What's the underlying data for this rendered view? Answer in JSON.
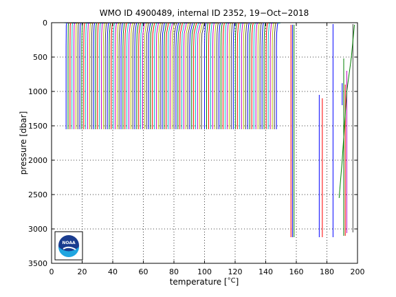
{
  "chart_data": {
    "type": "line",
    "title": "WMO ID 4900489, internal ID 2352, 19−Oct−2018",
    "xlabel": "temperature [",
    "xlabel_unit": "°C",
    "xlabel_suffix": "]",
    "ylabel": "pressure [dbar]",
    "xlim": [
      0,
      200
    ],
    "ylim": [
      0,
      3500
    ],
    "y_reversed": true,
    "grid": true,
    "x_ticks": [
      0,
      20,
      40,
      60,
      80,
      100,
      120,
      140,
      160,
      180,
      200
    ],
    "y_ticks": [
      0,
      500,
      1000,
      1500,
      2000,
      2500,
      3000,
      3500
    ],
    "x_tick_labels": [
      "0",
      "20",
      "40",
      "60",
      "80",
      "100",
      "120",
      "140",
      "160",
      "180",
      "200"
    ],
    "y_tick_labels": [
      "0",
      "500",
      "1000",
      "1500",
      "2000",
      "2500",
      "3000",
      "3500"
    ],
    "series_colors": [
      "#0000ff",
      "#008000",
      "#ff0000",
      "#00bfbf",
      "#bf00bf",
      "#bfbf00",
      "#404040"
    ],
    "profile_group_1": {
      "x_surface_start": 10,
      "x_surface_end": 100,
      "x_deep_start": 9.5,
      "x_deep_end": 98,
      "bottom_pressure": 1550,
      "count": 70
    },
    "profile_group_2": {
      "x_surface_start": 101,
      "x_surface_end": 148,
      "x_deep_start": 100,
      "x_deep_end": 147,
      "bottom_pressure": 1550,
      "count": 36
    },
    "deep_profiles": [
      {
        "x": 156.5,
        "top": 30,
        "bottom": 3120,
        "color": "#ff0000"
      },
      {
        "x": 157.5,
        "top": 30,
        "bottom": 3120,
        "color": "#0000ff"
      },
      {
        "x": 158.5,
        "top": 30,
        "bottom": 3120,
        "color": "#008000"
      },
      {
        "x": 175,
        "top": 1050,
        "bottom": 3120,
        "color": "#0000ff"
      },
      {
        "x": 177,
        "top": 1100,
        "bottom": 3120,
        "color": "#ff0000"
      },
      {
        "x": 184,
        "top": 20,
        "bottom": 3120,
        "color": "#0000ff"
      },
      {
        "x": 190,
        "top": 880,
        "bottom": 1200,
        "color": "#0000ff"
      },
      {
        "x": 191,
        "top": 520,
        "bottom": 3100,
        "color": "#008000"
      },
      {
        "x": 192,
        "top": 900,
        "bottom": 3100,
        "color": "#ff0000"
      },
      {
        "x": 193,
        "top": 700,
        "bottom": 3060,
        "color": "#bf00bf"
      },
      {
        "x": 197,
        "top": 20,
        "bottom": 3050,
        "color": "#404040"
      }
    ],
    "slanted_profile": {
      "points": [
        [
          198,
          30
        ],
        [
          196,
          500
        ],
        [
          193,
          1000
        ],
        [
          190,
          2000
        ],
        [
          188,
          2550
        ]
      ],
      "color": "#008000"
    }
  },
  "logo": {
    "text": "NOAA"
  }
}
